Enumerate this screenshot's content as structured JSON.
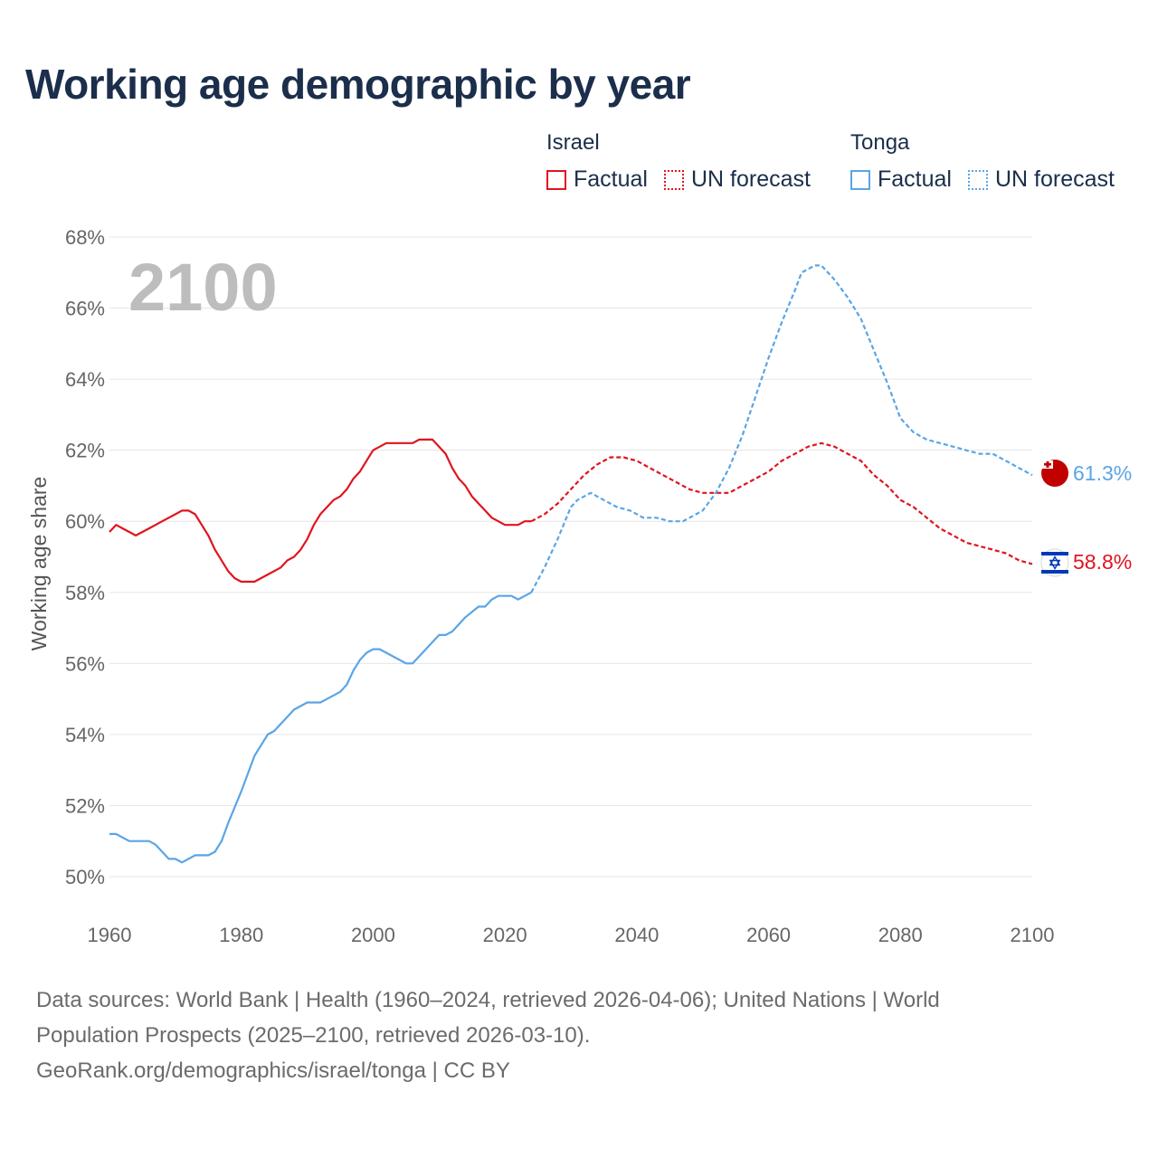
{
  "title": "Working age demographic by year",
  "legend": {
    "groups": [
      {
        "name": "Israel",
        "factual_label": "Factual",
        "forecast_label": "UN forecast",
        "color": "#e0141e"
      },
      {
        "name": "Tonga",
        "factual_label": "Factual",
        "forecast_label": "UN forecast",
        "color": "#5aa5e6"
      }
    ]
  },
  "sources": {
    "line1": "Data sources: World Bank | Health (1960–2024, retrieved 2026-04-06); United Nations | World Population Prospects (2025–2100, retrieved 2026-03-10).",
    "line2": "GeoRank.org/demographics/israel/tonga | CC BY"
  },
  "chart_data": {
    "type": "line",
    "title": "Working age demographic by year",
    "xlabel": "",
    "ylabel": "Working age share",
    "xlim": [
      1960,
      2100
    ],
    "ylim": [
      50,
      68
    ],
    "x_ticks": [
      1960,
      1980,
      2000,
      2020,
      2040,
      2060,
      2080,
      2100
    ],
    "x_tick_labels": [
      "1960",
      "1980",
      "2000",
      "2020",
      "2040",
      "2060",
      "2080",
      "2100"
    ],
    "y_ticks": [
      50,
      52,
      54,
      56,
      58,
      60,
      62,
      64,
      66,
      68
    ],
    "y_tick_labels": [
      "50%",
      "52%",
      "54%",
      "56%",
      "58%",
      "60%",
      "62%",
      "64%",
      "66%",
      "68%"
    ],
    "grid": true,
    "current_year": "2100",
    "forecast_start": 2024,
    "series": [
      {
        "name": "Israel",
        "color": "#e0141e",
        "end_label": "58.8%",
        "points": [
          [
            1960,
            59.7
          ],
          [
            1961,
            59.9
          ],
          [
            1962,
            59.8
          ],
          [
            1964,
            59.6
          ],
          [
            1966,
            59.8
          ],
          [
            1968,
            60.0
          ],
          [
            1970,
            60.2
          ],
          [
            1971,
            60.3
          ],
          [
            1972,
            60.3
          ],
          [
            1973,
            60.2
          ],
          [
            1975,
            59.6
          ],
          [
            1976,
            59.2
          ],
          [
            1978,
            58.6
          ],
          [
            1979,
            58.4
          ],
          [
            1980,
            58.3
          ],
          [
            1982,
            58.3
          ],
          [
            1984,
            58.5
          ],
          [
            1986,
            58.7
          ],
          [
            1987,
            58.9
          ],
          [
            1988,
            59.0
          ],
          [
            1989,
            59.2
          ],
          [
            1990,
            59.5
          ],
          [
            1991,
            59.9
          ],
          [
            1992,
            60.2
          ],
          [
            1994,
            60.6
          ],
          [
            1995,
            60.7
          ],
          [
            1996,
            60.9
          ],
          [
            1997,
            61.2
          ],
          [
            1998,
            61.4
          ],
          [
            1999,
            61.7
          ],
          [
            2000,
            62.0
          ],
          [
            2002,
            62.2
          ],
          [
            2004,
            62.2
          ],
          [
            2006,
            62.2
          ],
          [
            2007,
            62.3
          ],
          [
            2009,
            62.3
          ],
          [
            2011,
            61.9
          ],
          [
            2012,
            61.5
          ],
          [
            2013,
            61.2
          ],
          [
            2014,
            61.0
          ],
          [
            2015,
            60.7
          ],
          [
            2016,
            60.5
          ],
          [
            2017,
            60.3
          ],
          [
            2018,
            60.1
          ],
          [
            2019,
            60.0
          ],
          [
            2020,
            59.9
          ],
          [
            2022,
            59.9
          ],
          [
            2023,
            60.0
          ],
          [
            2024,
            60.0
          ],
          [
            2026,
            60.2
          ],
          [
            2028,
            60.5
          ],
          [
            2030,
            60.9
          ],
          [
            2032,
            61.3
          ],
          [
            2034,
            61.6
          ],
          [
            2036,
            61.8
          ],
          [
            2038,
            61.8
          ],
          [
            2040,
            61.7
          ],
          [
            2042,
            61.5
          ],
          [
            2044,
            61.3
          ],
          [
            2046,
            61.1
          ],
          [
            2048,
            60.9
          ],
          [
            2050,
            60.8
          ],
          [
            2052,
            60.8
          ],
          [
            2054,
            60.8
          ],
          [
            2056,
            61.0
          ],
          [
            2058,
            61.2
          ],
          [
            2060,
            61.4
          ],
          [
            2062,
            61.7
          ],
          [
            2064,
            61.9
          ],
          [
            2066,
            62.1
          ],
          [
            2068,
            62.2
          ],
          [
            2070,
            62.1
          ],
          [
            2072,
            61.9
          ],
          [
            2074,
            61.7
          ],
          [
            2076,
            61.3
          ],
          [
            2078,
            61.0
          ],
          [
            2080,
            60.6
          ],
          [
            2082,
            60.4
          ],
          [
            2084,
            60.1
          ],
          [
            2086,
            59.8
          ],
          [
            2088,
            59.6
          ],
          [
            2090,
            59.4
          ],
          [
            2092,
            59.3
          ],
          [
            2094,
            59.2
          ],
          [
            2096,
            59.1
          ],
          [
            2098,
            58.9
          ],
          [
            2100,
            58.8
          ]
        ]
      },
      {
        "name": "Tonga",
        "color": "#5aa5e6",
        "end_label": "61.3%",
        "points": [
          [
            1960,
            51.2
          ],
          [
            1961,
            51.2
          ],
          [
            1963,
            51.0
          ],
          [
            1966,
            51.0
          ],
          [
            1967,
            50.9
          ],
          [
            1969,
            50.5
          ],
          [
            1970,
            50.5
          ],
          [
            1971,
            50.4
          ],
          [
            1973,
            50.6
          ],
          [
            1975,
            50.6
          ],
          [
            1976,
            50.7
          ],
          [
            1977,
            51.0
          ],
          [
            1978,
            51.5
          ],
          [
            1980,
            52.4
          ],
          [
            1982,
            53.4
          ],
          [
            1984,
            54.0
          ],
          [
            1985,
            54.1
          ],
          [
            1986,
            54.3
          ],
          [
            1988,
            54.7
          ],
          [
            1990,
            54.9
          ],
          [
            1992,
            54.9
          ],
          [
            1994,
            55.1
          ],
          [
            1995,
            55.2
          ],
          [
            1996,
            55.4
          ],
          [
            1997,
            55.8
          ],
          [
            1998,
            56.1
          ],
          [
            1999,
            56.3
          ],
          [
            2000,
            56.4
          ],
          [
            2001,
            56.4
          ],
          [
            2003,
            56.2
          ],
          [
            2005,
            56.0
          ],
          [
            2006,
            56.0
          ],
          [
            2008,
            56.4
          ],
          [
            2010,
            56.8
          ],
          [
            2011,
            56.8
          ],
          [
            2012,
            56.9
          ],
          [
            2014,
            57.3
          ],
          [
            2016,
            57.6
          ],
          [
            2017,
            57.6
          ],
          [
            2018,
            57.8
          ],
          [
            2019,
            57.9
          ],
          [
            2021,
            57.9
          ],
          [
            2022,
            57.8
          ],
          [
            2024,
            58.0
          ],
          [
            2026,
            58.7
          ],
          [
            2028,
            59.5
          ],
          [
            2030,
            60.4
          ],
          [
            2031,
            60.6
          ],
          [
            2033,
            60.8
          ],
          [
            2035,
            60.6
          ],
          [
            2037,
            60.4
          ],
          [
            2039,
            60.3
          ],
          [
            2041,
            60.1
          ],
          [
            2043,
            60.1
          ],
          [
            2045,
            60.0
          ],
          [
            2047,
            60.0
          ],
          [
            2049,
            60.2
          ],
          [
            2050,
            60.3
          ],
          [
            2052,
            60.8
          ],
          [
            2054,
            61.5
          ],
          [
            2056,
            62.4
          ],
          [
            2058,
            63.5
          ],
          [
            2060,
            64.6
          ],
          [
            2062,
            65.6
          ],
          [
            2064,
            66.5
          ],
          [
            2065,
            67.0
          ],
          [
            2066,
            67.1
          ],
          [
            2067,
            67.2
          ],
          [
            2068,
            67.2
          ],
          [
            2070,
            66.8
          ],
          [
            2072,
            66.3
          ],
          [
            2074,
            65.7
          ],
          [
            2076,
            64.8
          ],
          [
            2078,
            63.9
          ],
          [
            2080,
            62.9
          ],
          [
            2082,
            62.5
          ],
          [
            2084,
            62.3
          ],
          [
            2086,
            62.2
          ],
          [
            2088,
            62.1
          ],
          [
            2090,
            62.0
          ],
          [
            2092,
            61.9
          ],
          [
            2094,
            61.9
          ],
          [
            2096,
            61.7
          ],
          [
            2098,
            61.5
          ],
          [
            2100,
            61.3
          ]
        ]
      }
    ]
  }
}
